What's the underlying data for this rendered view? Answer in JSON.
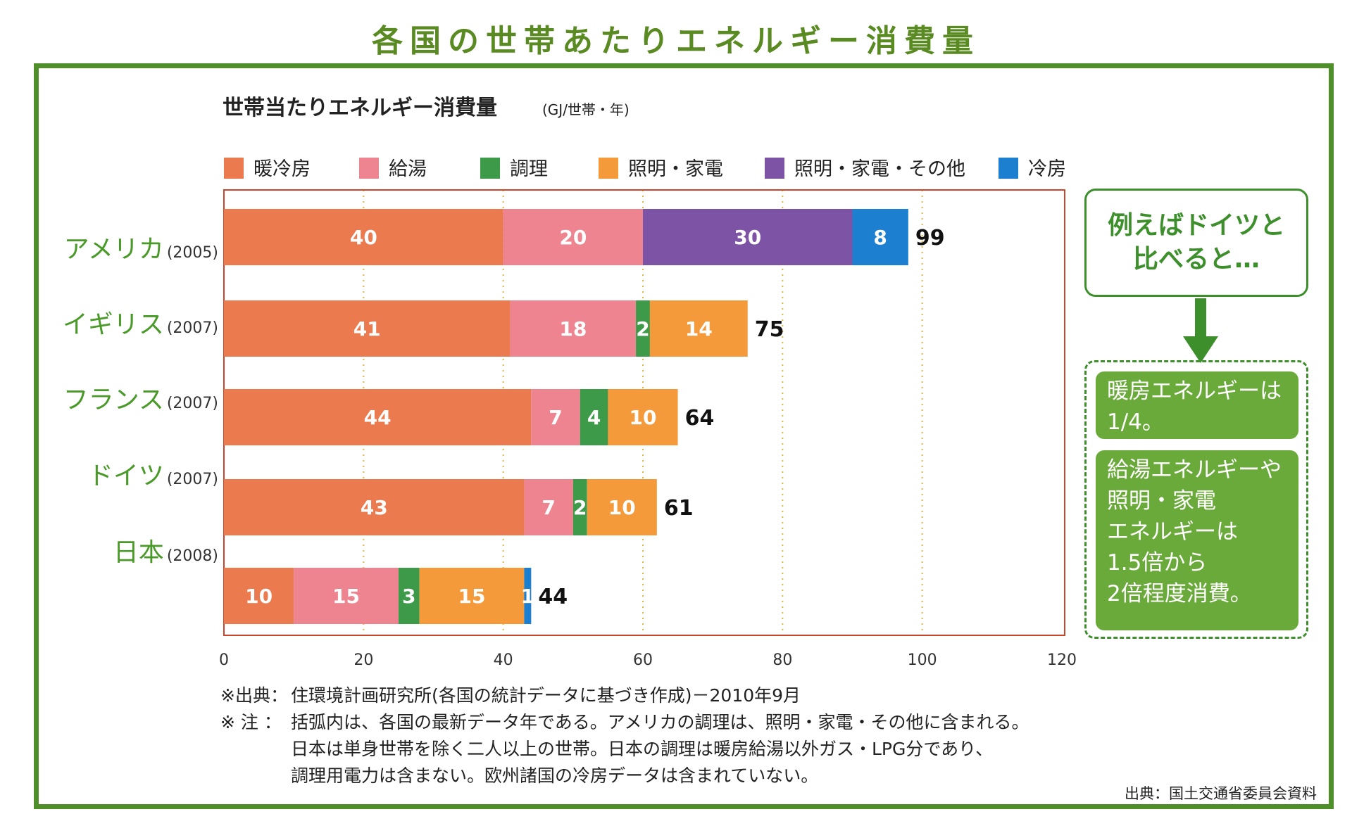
{
  "page_title": "各国の世帯あたりエネルギー消費量",
  "colors": {
    "frame": "#4f8f2a",
    "title_green": "#5a8a22",
    "callout_green": "#6aaa3a",
    "plot_border": "#c7452b"
  },
  "chart_data": {
    "type": "bar",
    "orientation": "horizontal",
    "stacked": true,
    "title": "世帯当たりエネルギー消費量",
    "unit": "(GJ/世帯・年)",
    "xlim": [
      0,
      120
    ],
    "xticks": [
      0,
      20,
      40,
      60,
      80,
      100,
      120
    ],
    "grid": "vertical dotted",
    "legend_position": "top",
    "legend": [
      {
        "name": "暖冷房",
        "color": "#ec7a4f"
      },
      {
        "name": "給湯",
        "color": "#ee8490"
      },
      {
        "name": "調理",
        "color": "#3c9a48"
      },
      {
        "name": "照明・家電",
        "color": "#f49a3a"
      },
      {
        "name": "照明・家電・その他",
        "color": "#7d53a6"
      },
      {
        "name": "冷房",
        "color": "#1d7fd0"
      }
    ],
    "categories": [
      {
        "name": "アメリカ",
        "year": "(2005)",
        "total": "99"
      },
      {
        "name": "イギリス",
        "year": "(2007)",
        "total": "75"
      },
      {
        "name": "フランス",
        "year": "(2007)",
        "total": "64"
      },
      {
        "name": "ドイツ",
        "year": "(2007)",
        "total": "61"
      },
      {
        "name": "日本",
        "year": "(2008)",
        "total": "44"
      }
    ],
    "series": [
      {
        "name": "暖冷房",
        "values": [
          40,
          41,
          44,
          43,
          10
        ]
      },
      {
        "name": "給湯",
        "values": [
          20,
          18,
          7,
          7,
          15
        ]
      },
      {
        "name": "調理",
        "values": [
          0,
          2,
          4,
          2,
          3
        ]
      },
      {
        "name": "照明・家電",
        "values": [
          0,
          14,
          10,
          10,
          15
        ]
      },
      {
        "name": "照明・家電・その他",
        "values": [
          30,
          0,
          0,
          0,
          0
        ]
      },
      {
        "name": "冷房",
        "values": [
          8,
          0,
          0,
          0,
          1
        ]
      }
    ]
  },
  "notes": {
    "source_mark": "※出典：",
    "source_text": "住環境計画研究所(各国の統計データに基づき作成)－2010年9月",
    "note_mark": "※ 注 ：",
    "note_lines": [
      "括弧内は、各国の最新データ年である。アメリカの調理は、照明・家電・その他に含まれる。",
      "日本は単身世帯を除く二人以上の世帯。日本の調理は暖房給湯以外ガス・LPG分であり、",
      "調理用電力は含まない。欧州諸国の冷房データは含まれていない。"
    ]
  },
  "source_credit": "出典：国土交通省委員会資料",
  "callout": {
    "head_line1": "例えばドイツと",
    "head_line2": "比べると…",
    "note1_lines": [
      "暖房エネルギーは",
      "1/4。"
    ],
    "note2_lines": [
      "給湯エネルギーや",
      "照明・家電",
      "エネルギーは",
      "1.5倍から",
      "2倍程度消費。"
    ]
  }
}
